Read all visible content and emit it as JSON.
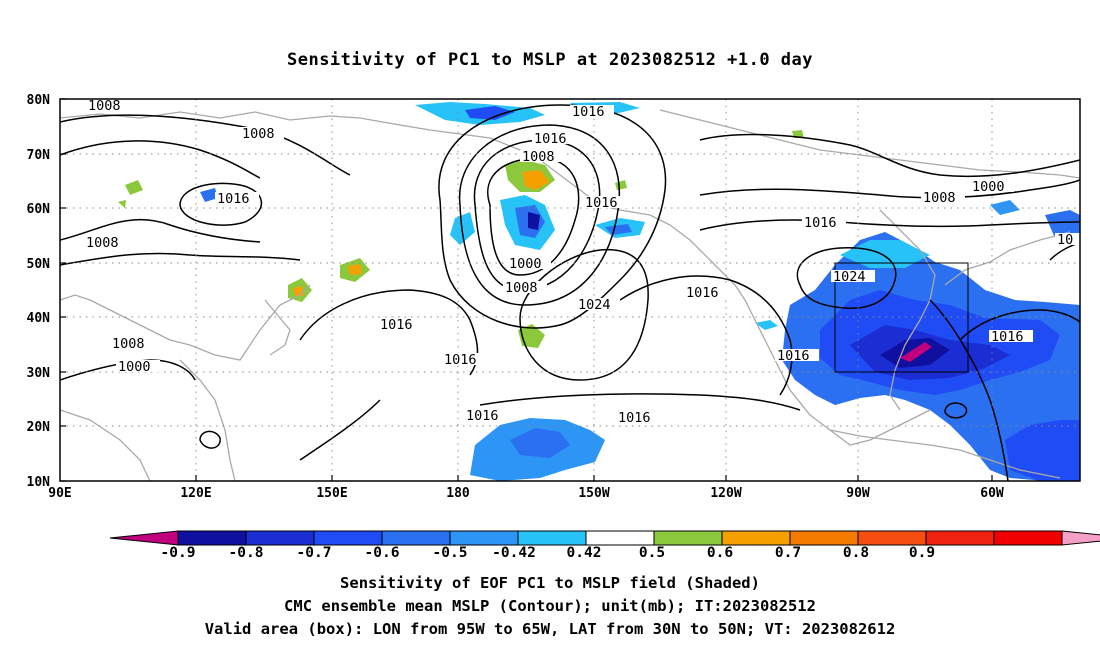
{
  "title": "Sensitivity of PC1 to MSLP at 2023082512 +1.0 day",
  "lat_labels": [
    "80N",
    "70N",
    "60N",
    "50N",
    "40N",
    "30N",
    "20N",
    "10N"
  ],
  "lon_labels": [
    "90E",
    "120E",
    "150E",
    "180",
    "150W",
    "120W",
    "90W",
    "60W"
  ],
  "colorbar": {
    "colors": [
      "#c0007c",
      "#1010a0",
      "#1a2ed4",
      "#1f4cf5",
      "#2a70f0",
      "#2c95f5",
      "#27c2f7",
      "#ffffff",
      "#8cc83c",
      "#f5a000",
      "#f57a00",
      "#f54e10",
      "#ee2210",
      "#f00000",
      "#f5a0c8"
    ],
    "labels": [
      "-0.9",
      "-0.8",
      "-0.7",
      "-0.6",
      "-0.5",
      "-0.42",
      "0.42",
      "0.5",
      "0.6",
      "0.7",
      "0.8",
      "0.9"
    ]
  },
  "contour_labels": [
    "1008",
    "1008",
    "1016",
    "1008",
    "1008",
    "1000",
    "1016",
    "1008",
    "1016",
    "1000",
    "1008",
    "1016",
    "1016",
    "1016",
    "1024",
    "1016",
    "1016",
    "1016",
    "1000",
    "1008",
    "1016",
    "1024",
    "1016",
    "1016",
    "10"
  ],
  "footer": [
    "Sensitivity of EOF PC1 to MSLP field (Shaded)",
    "CMC ensemble mean MSLP (Contour); unit(mb); IT:2023082512",
    "Valid area (box): LON from 95W to 65W, LAT from 30N to 50N; VT: 2023082612"
  ]
}
